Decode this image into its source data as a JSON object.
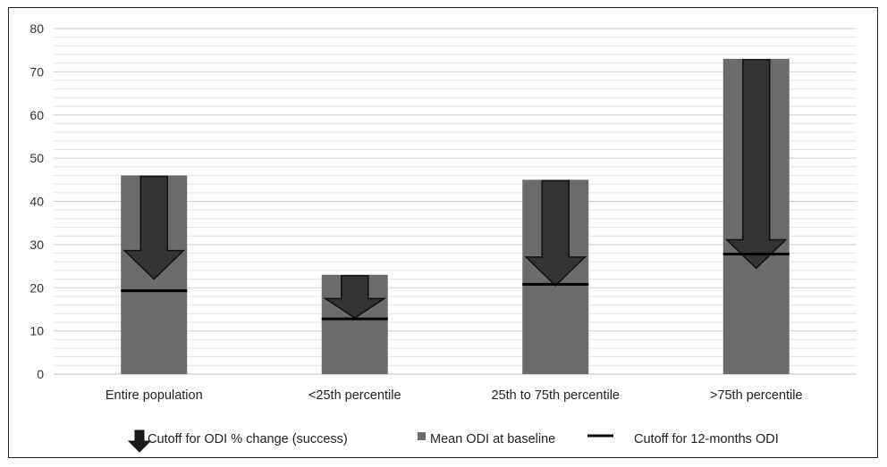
{
  "chart_data": {
    "type": "bar",
    "categories": [
      "Entire population",
      "<25th percentile",
      "25th to 75th percentile",
      ">75th percentile"
    ],
    "series": [
      {
        "name": "Mean ODI at baseline",
        "values": [
          46,
          23,
          45,
          73
        ],
        "color": "#6b6b6b"
      },
      {
        "name": "Cutoff for ODI % change (success)",
        "values": [
          22,
          13,
          20.5,
          24.5
        ],
        "color": "#333333"
      },
      {
        "name": "Cutoff for 12-months ODI",
        "values": [
          19.3,
          12.8,
          20.8,
          27.8
        ],
        "color": "#000000"
      }
    ],
    "ylim": [
      0,
      80
    ],
    "yticks": [
      0,
      10,
      20,
      30,
      40,
      50,
      60,
      70,
      80
    ],
    "minor_gridlines_step": 2,
    "grid": true,
    "legend_position": "bottom"
  }
}
